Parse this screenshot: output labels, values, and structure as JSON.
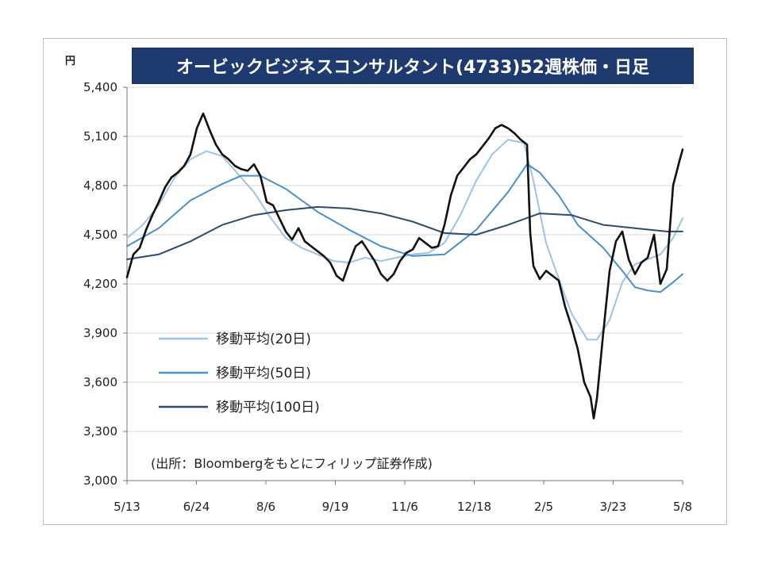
{
  "chart_data": {
    "type": "line",
    "title": "オービックビジネスコンサルタント(4733)52週株価・日足",
    "unit_label": "円",
    "ylim": [
      3000,
      5400
    ],
    "y_ticks": [
      "3,000",
      "3,300",
      "3,600",
      "3,900",
      "4,200",
      "4,500",
      "4,800",
      "5,100",
      "5,400"
    ],
    "x_ticks": [
      "5/13",
      "6/24",
      "8/6",
      "9/19",
      "11/6",
      "12/18",
      "2/5",
      "3/23",
      "5/8"
    ],
    "grid": true,
    "legend_position": "left-middle",
    "source_note": "(出所：Bloombergをもとにフィリップ証券作成)",
    "series": [
      {
        "name": "",
        "role": "price",
        "color": "#111111",
        "points": [
          [
            0,
            4240
          ],
          [
            2,
            4380
          ],
          [
            4,
            4420
          ],
          [
            6,
            4530
          ],
          [
            8,
            4620
          ],
          [
            10,
            4700
          ],
          [
            12,
            4790
          ],
          [
            14,
            4850
          ],
          [
            16,
            4880
          ],
          [
            18,
            4920
          ],
          [
            20,
            4990
          ],
          [
            22,
            5150
          ],
          [
            24,
            5240
          ],
          [
            26,
            5140
          ],
          [
            28,
            5050
          ],
          [
            30,
            4990
          ],
          [
            32,
            4960
          ],
          [
            34,
            4920
          ],
          [
            36,
            4900
          ],
          [
            38,
            4890
          ],
          [
            40,
            4930
          ],
          [
            42,
            4860
          ],
          [
            44,
            4700
          ],
          [
            46,
            4680
          ],
          [
            48,
            4600
          ],
          [
            50,
            4520
          ],
          [
            52,
            4470
          ],
          [
            54,
            4540
          ],
          [
            56,
            4460
          ],
          [
            58,
            4430
          ],
          [
            60,
            4400
          ],
          [
            62,
            4370
          ],
          [
            64,
            4330
          ],
          [
            66,
            4250
          ],
          [
            68,
            4220
          ],
          [
            70,
            4330
          ],
          [
            72,
            4430
          ],
          [
            74,
            4460
          ],
          [
            76,
            4400
          ],
          [
            78,
            4340
          ],
          [
            80,
            4260
          ],
          [
            82,
            4220
          ],
          [
            84,
            4260
          ],
          [
            86,
            4340
          ],
          [
            88,
            4390
          ],
          [
            90,
            4410
          ],
          [
            92,
            4480
          ],
          [
            94,
            4450
          ],
          [
            96,
            4420
          ],
          [
            98,
            4430
          ],
          [
            100,
            4560
          ],
          [
            102,
            4740
          ],
          [
            104,
            4860
          ],
          [
            106,
            4910
          ],
          [
            108,
            4960
          ],
          [
            110,
            4990
          ],
          [
            112,
            5040
          ],
          [
            114,
            5090
          ],
          [
            116,
            5150
          ],
          [
            118,
            5170
          ],
          [
            120,
            5150
          ],
          [
            122,
            5120
          ],
          [
            124,
            5080
          ],
          [
            126,
            5050
          ],
          [
            127,
            4510
          ],
          [
            128,
            4310
          ],
          [
            130,
            4230
          ],
          [
            132,
            4280
          ],
          [
            134,
            4250
          ],
          [
            136,
            4220
          ],
          [
            138,
            4060
          ],
          [
            140,
            3940
          ],
          [
            142,
            3800
          ],
          [
            144,
            3600
          ],
          [
            146,
            3510
          ],
          [
            147,
            3380
          ],
          [
            148,
            3500
          ],
          [
            150,
            3900
          ],
          [
            152,
            4280
          ],
          [
            154,
            4460
          ],
          [
            156,
            4520
          ],
          [
            158,
            4350
          ],
          [
            160,
            4260
          ],
          [
            162,
            4330
          ],
          [
            164,
            4360
          ],
          [
            166,
            4500
          ],
          [
            168,
            4200
          ],
          [
            170,
            4290
          ],
          [
            172,
            4800
          ],
          [
            174,
            4950
          ],
          [
            175,
            5020
          ]
        ]
      },
      {
        "name": "移動平均(20日)",
        "color": "#9dc3e6",
        "points": [
          [
            0,
            4480
          ],
          [
            5,
            4560
          ],
          [
            10,
            4680
          ],
          [
            15,
            4850
          ],
          [
            20,
            4960
          ],
          [
            25,
            5010
          ],
          [
            30,
            4980
          ],
          [
            35,
            4870
          ],
          [
            40,
            4760
          ],
          [
            45,
            4610
          ],
          [
            50,
            4480
          ],
          [
            55,
            4420
          ],
          [
            60,
            4380
          ],
          [
            65,
            4340
          ],
          [
            70,
            4330
          ],
          [
            75,
            4360
          ],
          [
            80,
            4340
          ],
          [
            85,
            4360
          ],
          [
            90,
            4380
          ],
          [
            95,
            4390
          ],
          [
            100,
            4450
          ],
          [
            105,
            4620
          ],
          [
            110,
            4830
          ],
          [
            115,
            4990
          ],
          [
            120,
            5080
          ],
          [
            125,
            5060
          ],
          [
            128,
            4830
          ],
          [
            132,
            4450
          ],
          [
            136,
            4230
          ],
          [
            140,
            4020
          ],
          [
            145,
            3860
          ],
          [
            148,
            3860
          ],
          [
            152,
            3980
          ],
          [
            156,
            4210
          ],
          [
            160,
            4320
          ],
          [
            164,
            4350
          ],
          [
            168,
            4380
          ],
          [
            172,
            4480
          ],
          [
            175,
            4600
          ]
        ]
      },
      {
        "name": "移動平均(50日)",
        "color": "#4a90cc",
        "points": [
          [
            0,
            4430
          ],
          [
            10,
            4540
          ],
          [
            20,
            4710
          ],
          [
            30,
            4810
          ],
          [
            36,
            4860
          ],
          [
            42,
            4860
          ],
          [
            50,
            4780
          ],
          [
            60,
            4640
          ],
          [
            70,
            4530
          ],
          [
            80,
            4430
          ],
          [
            90,
            4370
          ],
          [
            100,
            4380
          ],
          [
            110,
            4530
          ],
          [
            120,
            4760
          ],
          [
            126,
            4930
          ],
          [
            130,
            4880
          ],
          [
            136,
            4740
          ],
          [
            142,
            4560
          ],
          [
            150,
            4420
          ],
          [
            156,
            4280
          ],
          [
            160,
            4180
          ],
          [
            164,
            4160
          ],
          [
            168,
            4150
          ],
          [
            172,
            4210
          ],
          [
            175,
            4260
          ]
        ]
      },
      {
        "name": "移動平均(100日)",
        "color": "#2e4a6f",
        "points": [
          [
            0,
            4350
          ],
          [
            10,
            4380
          ],
          [
            20,
            4460
          ],
          [
            30,
            4560
          ],
          [
            40,
            4620
          ],
          [
            50,
            4650
          ],
          [
            60,
            4670
          ],
          [
            70,
            4660
          ],
          [
            80,
            4630
          ],
          [
            90,
            4580
          ],
          [
            100,
            4510
          ],
          [
            110,
            4500
          ],
          [
            120,
            4560
          ],
          [
            130,
            4630
          ],
          [
            140,
            4620
          ],
          [
            150,
            4560
          ],
          [
            160,
            4540
          ],
          [
            170,
            4520
          ],
          [
            175,
            4520
          ]
        ]
      }
    ]
  }
}
